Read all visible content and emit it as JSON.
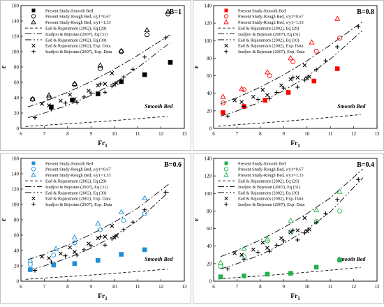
{
  "chart_data": [
    {
      "type": "scatter",
      "panel_label": "B=1",
      "panel_color": "#000000",
      "xlabel": "Fr",
      "xlabel_sub": "1",
      "ylabel": "ε",
      "xlim": [
        6,
        13
      ],
      "ylim": [
        0,
        160
      ],
      "xticks": [
        6,
        7,
        8,
        9,
        10,
        11,
        12,
        13
      ],
      "yticks": [
        0,
        20,
        40,
        60,
        80,
        100,
        120,
        140,
        160
      ],
      "annotation": "Smooth Bed",
      "series": [
        {
          "name": "Present Study-Smooth Bed",
          "marker": "square-filled",
          "x": [
            7.3,
            8.2,
            9.3,
            10.3,
            11.3,
            12.4
          ],
          "y": [
            28,
            37,
            45,
            61,
            70,
            86
          ]
        },
        {
          "name": "Present Study-Rough Bed, s/y1=0.67",
          "marker": "circle-open",
          "x": [
            6.5,
            7.2,
            8.3,
            9.4,
            10.3,
            11.4,
            12.3
          ],
          "y": [
            38,
            40,
            57,
            78,
            100,
            122,
            149
          ]
        },
        {
          "name": "Present Study-Rough Bed, s/y1=1.33",
          "marker": "triangle-open",
          "x": [
            6.5,
            7.2,
            8.3,
            9.4,
            10.3,
            11.4,
            12.3
          ],
          "y": [
            38,
            43,
            58,
            82,
            101,
            128,
            152
          ]
        },
        {
          "name": "Ead & Rajaratnam (2002), Eq (29)",
          "style": "dashed",
          "x": [
            6.2,
            7,
            8,
            9,
            10,
            11,
            12.3
          ],
          "y": [
            2.5,
            4.1,
            6,
            8,
            10.2,
            12.6,
            15.7
          ]
        },
        {
          "name": "Izadjoo & Bejestan (2007), Eq (31)",
          "style": "dashdot",
          "x": [
            6.3,
            7,
            8,
            9,
            10,
            11,
            12.4
          ],
          "y": [
            28,
            35,
            47,
            61,
            77,
            95,
            122
          ]
        },
        {
          "name": "Ead & Rajaratnam (2002), Eq (30)",
          "style": "dashdotdot",
          "x": [
            6.3,
            7,
            8,
            9,
            10,
            11,
            12.4
          ],
          "y": [
            14,
            20,
            30,
            43,
            59,
            79,
            112
          ]
        },
        {
          "name": "Ead & Rajaratnam (2002), Exp. Data",
          "marker": "x",
          "x": [
            6.9,
            7.2,
            7.7,
            8.1,
            8.3,
            8.9,
            9.3,
            9.6,
            9.9,
            10.0,
            10.1
          ],
          "y": [
            32,
            30,
            36,
            44,
            38,
            49,
            56,
            58,
            72,
            57,
            59
          ]
        },
        {
          "name": "Izadjoo & Bejestan (2007), Exp. Data",
          "marker": "plus",
          "x": [
            6.6,
            7.3,
            7.9,
            8.4,
            8.7,
            9.0,
            9.4,
            9.6,
            9.9,
            10.4,
            10.8,
            11.3,
            12.2
          ],
          "y": [
            14,
            25,
            33,
            34,
            41,
            46,
            58,
            47,
            55,
            67,
            77,
            93,
            118
          ]
        }
      ]
    },
    {
      "type": "scatter",
      "panel_label": "B=0.8",
      "panel_color": "#ff0000",
      "xlabel": "Fr",
      "xlabel_sub": "1",
      "ylabel": "ε",
      "xlim": [
        6,
        13
      ],
      "ylim": [
        0,
        140
      ],
      "xticks": [
        6,
        7,
        8,
        9,
        10,
        11,
        12,
        13
      ],
      "yticks": [
        0,
        20,
        40,
        60,
        80,
        100,
        120,
        140
      ],
      "annotation": "Smooth Bed",
      "series": [
        {
          "name": "Present Study-Smooth Bed",
          "marker": "square-filled",
          "x": [
            6.4,
            7.3,
            8.2,
            9.2,
            10.3,
            11.3
          ],
          "y": [
            18,
            25,
            32,
            41,
            54,
            68
          ]
        },
        {
          "name": "Present Study-Rough Bed, s/y1=0.67",
          "marker": "circle-open",
          "x": [
            6.4,
            7.3,
            8.4,
            9.4,
            10.4,
            11.4
          ],
          "y": [
            29,
            44,
            60,
            76,
            88,
            103
          ]
        },
        {
          "name": "Present Study-Rough Bed, s/y1=1.33",
          "marker": "triangle-open",
          "x": [
            6.4,
            7.2,
            8.3,
            9.3,
            10.2,
            11.3
          ],
          "y": [
            36,
            45,
            64,
            80,
            98,
            125
          ]
        },
        {
          "name": "Ead & Rajaratnam (2002), Eq (29)",
          "style": "dashed",
          "x": [
            6.2,
            7,
            8,
            9,
            10,
            11,
            12.3
          ],
          "y": [
            2.5,
            4.1,
            6,
            8,
            10.2,
            12.6,
            15.7
          ]
        },
        {
          "name": "Izadjoo & Bejestan (2007), Eq (31)",
          "style": "dashdot",
          "x": [
            6.3,
            7,
            8,
            9,
            10,
            11,
            12.4
          ],
          "y": [
            28,
            35,
            47,
            61,
            77,
            95,
            122
          ]
        },
        {
          "name": "Ead & Rajaratnam (2002), Eq (30)",
          "style": "dashdotdot",
          "x": [
            6.3,
            7,
            8,
            9,
            10,
            11,
            12.4
          ],
          "y": [
            14,
            20,
            30,
            43,
            59,
            79,
            112
          ]
        },
        {
          "name": "Ead & Rajaratnam (2002), Exp. Data",
          "marker": "x",
          "x": [
            6.9,
            7.2,
            7.7,
            8.1,
            8.3,
            8.9,
            9.3,
            9.6,
            9.9,
            10.0,
            10.1
          ],
          "y": [
            32,
            30,
            36,
            44,
            38,
            49,
            56,
            58,
            72,
            57,
            59
          ]
        },
        {
          "name": "Izadjoo & Bejestan (2007), Exp. Data",
          "marker": "plus",
          "x": [
            6.6,
            7.3,
            7.9,
            8.4,
            8.7,
            9.0,
            9.4,
            9.6,
            9.9,
            10.4,
            10.8,
            11.3,
            12.2
          ],
          "y": [
            14,
            25,
            33,
            34,
            41,
            46,
            58,
            47,
            55,
            67,
            77,
            93,
            116
          ]
        }
      ]
    },
    {
      "type": "scatter",
      "panel_label": "B=0.6",
      "panel_color": "#1e8fd6",
      "xlabel": "Fr",
      "xlabel_sub": "1",
      "ylabel": "ε",
      "xlim": [
        6,
        13
      ],
      "ylim": [
        0,
        160
      ],
      "xticks": [
        6,
        7,
        8,
        9,
        10,
        11,
        12,
        13
      ],
      "yticks": [
        0,
        20,
        40,
        60,
        80,
        100,
        120,
        140,
        160
      ],
      "annotation": "Smooth Bed",
      "series": [
        {
          "name": "Present Study-Smooth Bed",
          "marker": "square-filled",
          "x": [
            6.4,
            7.4,
            8.3,
            9.3,
            10.3,
            11.3
          ],
          "y": [
            15,
            21,
            23,
            27,
            35,
            41
          ]
        },
        {
          "name": "Present Study-Rough Bed, s/y1=0.67",
          "marker": "circle-open",
          "x": [
            6.4,
            7.4,
            8.3,
            9.4,
            10.4,
            11.3
          ],
          "y": [
            22,
            34,
            50,
            67,
            79,
            88
          ]
        },
        {
          "name": "Present Study-Rough Bed, s/y1=1.33",
          "marker": "triangle-open",
          "x": [
            6.4,
            7.5,
            8.3,
            9.3,
            10.3,
            11.3
          ],
          "y": [
            27,
            42,
            57,
            75,
            90,
            108
          ]
        },
        {
          "name": "Ead & Rajaratnam (2002), Eq (29)",
          "style": "dashed",
          "x": [
            6.2,
            7,
            8,
            9,
            10,
            11,
            12.3
          ],
          "y": [
            2.5,
            4.1,
            6,
            8,
            10.2,
            12.6,
            15.7
          ]
        },
        {
          "name": "Izadjoo & Bejestan (2007), Eq (31)",
          "style": "dashdot",
          "x": [
            6.3,
            7,
            8,
            9,
            10,
            11,
            12.4
          ],
          "y": [
            28,
            35,
            47,
            61,
            77,
            95,
            128
          ]
        },
        {
          "name": "Ead & Rajaratnam (2002), Eq (30)",
          "style": "dashdotdot",
          "x": [
            6.3,
            7,
            8,
            9,
            10,
            11,
            12.4
          ],
          "y": [
            14,
            20,
            30,
            43,
            59,
            79,
            118
          ]
        },
        {
          "name": "Ead & Rajaratnam (2002), Exp. Data",
          "marker": "x",
          "x": [
            6.9,
            7.2,
            7.7,
            8.1,
            8.3,
            8.9,
            9.3,
            9.6,
            9.9,
            10.0,
            10.1
          ],
          "y": [
            32,
            30,
            36,
            44,
            38,
            49,
            56,
            58,
            72,
            57,
            59
          ]
        },
        {
          "name": "Izadjoo & Bejestan (2007), Exp. Data",
          "marker": "plus",
          "x": [
            6.6,
            7.3,
            7.9,
            8.4,
            8.7,
            9.0,
            9.4,
            9.6,
            9.9,
            10.4,
            10.8,
            11.3,
            12.2
          ],
          "y": [
            14,
            25,
            33,
            34,
            41,
            46,
            58,
            47,
            55,
            67,
            77,
            93,
            116
          ]
        }
      ]
    },
    {
      "type": "scatter",
      "panel_label": "B=0.4",
      "panel_color": "#22b14c",
      "xlabel": "Fr",
      "xlabel_sub": "1",
      "ylabel": "ε",
      "xlim": [
        6,
        13
      ],
      "ylim": [
        0,
        140
      ],
      "xticks": [
        6,
        7,
        8,
        9,
        10,
        11,
        12,
        13
      ],
      "yticks": [
        0,
        20,
        40,
        60,
        80,
        100,
        120,
        140
      ],
      "annotation": "Smooth Bed",
      "series": [
        {
          "name": "Present Study-Smooth Bed",
          "marker": "square-filled",
          "x": [
            6.3,
            7.3,
            8.3,
            9.3,
            10.4,
            11.4
          ],
          "y": [
            5,
            6,
            8,
            9,
            16,
            24
          ]
        },
        {
          "name": "Present Study-Rough Bed, s/y1=0.67",
          "marker": "circle-open",
          "x": [
            6.3,
            7.3,
            8.3,
            9.3,
            10.4,
            11.4
          ],
          "y": [
            17,
            28,
            46,
            56,
            68,
            80
          ]
        },
        {
          "name": "Present Study-Rough Bed, s/y1=1.33",
          "marker": "triangle-open",
          "x": [
            6.3,
            7.3,
            8.3,
            9.3,
            10.4,
            11.4
          ],
          "y": [
            21,
            37,
            48,
            69,
            81,
            102
          ]
        },
        {
          "name": "Ead & Rajaratnam (2002), Eq (29)",
          "style": "dashed",
          "x": [
            6.2,
            7,
            8,
            9,
            10,
            11,
            12.3
          ],
          "y": [
            2.5,
            4.1,
            6,
            8,
            10.2,
            12.6,
            15.7
          ]
        },
        {
          "name": "Izadjoo & Bejestan (2007), Eq (31)",
          "style": "dashdot",
          "x": [
            6.3,
            7,
            8,
            9,
            10,
            11,
            12.4
          ],
          "y": [
            28,
            35,
            47,
            61,
            77,
            95,
            128
          ]
        },
        {
          "name": "Ead & Rajaratnam (2002), Eq (30)",
          "style": "dashdotdot",
          "x": [
            6.3,
            7,
            8,
            9,
            10,
            11,
            12.4
          ],
          "y": [
            14,
            20,
            30,
            43,
            59,
            79,
            118
          ]
        },
        {
          "name": "Ead & Rajaratnam (2002), Exp. Data",
          "marker": "x",
          "x": [
            6.9,
            7.2,
            7.7,
            8.1,
            8.3,
            8.9,
            9.3,
            9.6,
            9.9,
            10.0,
            10.1
          ],
          "y": [
            32,
            30,
            36,
            44,
            38,
            49,
            56,
            58,
            72,
            57,
            59
          ]
        },
        {
          "name": "Izadjoo & Bejestan (2007), Exp. Data",
          "marker": "plus",
          "x": [
            6.6,
            7.3,
            7.9,
            8.4,
            8.7,
            9.0,
            9.4,
            9.6,
            9.9,
            10.4,
            10.8,
            11.3,
            12.2
          ],
          "y": [
            14,
            25,
            33,
            34,
            41,
            46,
            58,
            47,
            55,
            67,
            77,
            93,
            116
          ]
        }
      ]
    }
  ]
}
